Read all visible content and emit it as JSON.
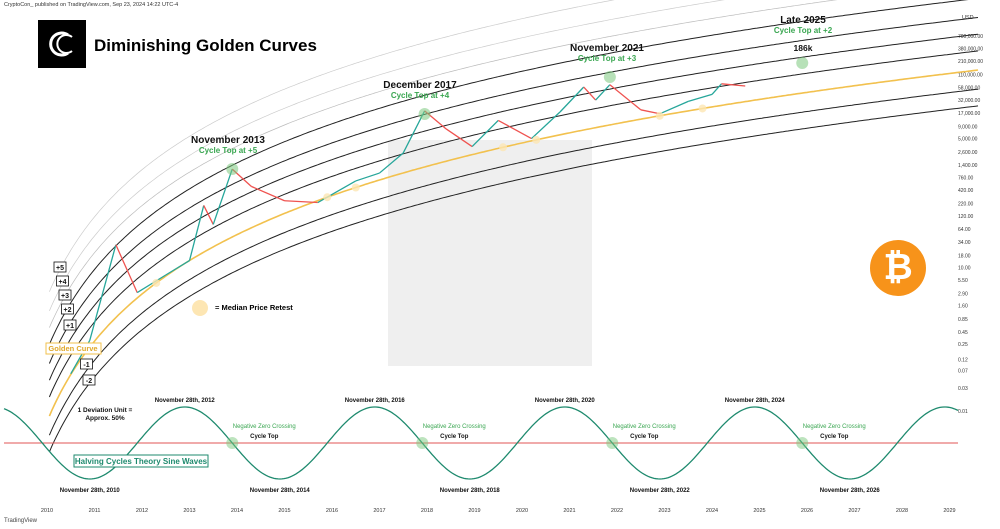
{
  "header": {
    "publisher_line": "CryptoCon_ published on TradingView.com, Sep 23, 2024 14:22 UTC-4"
  },
  "footer": {
    "brand": "TradingView"
  },
  "title": "Diminishing Golden Curves",
  "chart_data": {
    "type": "line",
    "title": "Diminishing Golden Curves",
    "y_scale": "log",
    "y_unit": "USD",
    "y_ticks": [
      "700,000.00",
      "380,000.00",
      "210,000.00",
      "110,000.00",
      "58,000.00",
      "32,000.00",
      "17,000.00",
      "9,000.00",
      "5,000.00",
      "2,600.00",
      "1,400.00",
      "760.00",
      "420.00",
      "220.00",
      "120.00",
      "64.00",
      "34.00",
      "18.00",
      "10.00",
      "5.50",
      "2.90",
      "1.60",
      "0.85",
      "0.45",
      "0.25",
      "0.12",
      "0.07",
      "0.03",
      "0.01"
    ],
    "x_ticks": [
      "2010",
      "2011",
      "2012",
      "2013",
      "2014",
      "2015",
      "2016",
      "2017",
      "2018",
      "2019",
      "2020",
      "2021",
      "2022",
      "2023",
      "2024",
      "2025",
      "2026",
      "2027",
      "2028",
      "2029"
    ],
    "deviation_labels": [
      "+5",
      "+4",
      "+3",
      "+2",
      "+1",
      "-1",
      "-2"
    ],
    "golden_curve_label": "Golden Curve",
    "deviation_note": [
      "1 Deviation Unit =",
      "Approx. 50%"
    ],
    "sine_label": "Halving Cycles Theory Sine Waves",
    "legend_text": "= Median Price Retest",
    "cycle_tops": [
      {
        "title": "November 2013",
        "subtitle": "Cycle Top at +5"
      },
      {
        "title": "December 2017",
        "subtitle": "Cycle Top at +4"
      },
      {
        "title": "November 2021",
        "subtitle": "Cycle Top at +3"
      },
      {
        "title": "Late 2025",
        "subtitle": "Cycle Top at +2",
        "value": "186k"
      }
    ],
    "sine_peaks": [
      "November 28th, 2012",
      "November 28th, 2016",
      "November 28th, 2020",
      "November 28th, 2024"
    ],
    "sine_troughs": [
      "November 28th, 2010",
      "November 28th, 2014",
      "November 28th, 2018",
      "November 28th, 2022",
      "November 28th, 2026"
    ],
    "zero_crossing_label": "Negative Zero Crossing",
    "cycle_top_label": "Cycle Top",
    "zero_crossing_count": 4,
    "price_path_years": [
      2010.5,
      2010.9,
      2011.45,
      2011.9,
      2012.5,
      2013.0,
      2013.3,
      2013.5,
      2013.9,
      2014.3,
      2015.0,
      2015.7,
      2016.5,
      2017.0,
      2017.5,
      2017.95,
      2018.4,
      2018.95,
      2019.5,
      2020.2,
      2020.8,
      2021.3,
      2021.55,
      2021.85,
      2022.5,
      2022.9,
      2023.5,
      2024.0,
      2024.2,
      2024.7
    ],
    "price_path_usd": [
      0.06,
      0.3,
      30,
      3,
      7,
      14,
      200,
      80,
      1150,
      500,
      250,
      230,
      650,
      950,
      2500,
      19000,
      8000,
      3400,
      12000,
      5000,
      18000,
      60000,
      32000,
      67000,
      20000,
      16500,
      30000,
      42000,
      70000,
      63000
    ]
  }
}
